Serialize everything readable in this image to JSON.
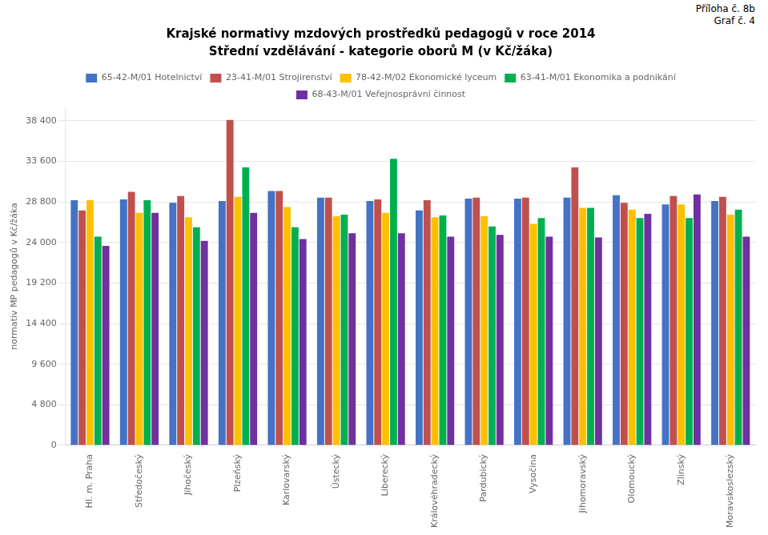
{
  "chart_data": {
    "type": "bar",
    "title": "Krajské normativy mzdových prostředků pedagogů v roce 2014",
    "subtitle": "Střední vzdělávání - kategorie oborů M (v Kč/žáka)",
    "annotations": [
      "Příloha č. 8b",
      "Graf č. 4"
    ],
    "ylabel": "normativ MP pedagogů v Kč/žáka",
    "categories": [
      "Hl. m. Praha",
      "Středočeský",
      "Jihočeský",
      "Plzeňský",
      "Karlovarský",
      "Ústecký",
      "Liberecký",
      "Královéhradecký",
      "Pardubický",
      "Vysočina",
      "Jihomoravský",
      "Olomoucký",
      "Zlínský",
      "Moravskoslezský"
    ],
    "series": [
      {
        "name": "65-42-M/01 Hotelnictví",
        "color": "#4472C4",
        "values": [
          29000,
          29100,
          28700,
          28900,
          30100,
          29300,
          28900,
          27800,
          29200,
          29200,
          29300,
          29600,
          28500,
          28900
        ]
      },
      {
        "name": "23-41-M/01 Strojirenství",
        "color": "#C0504D",
        "values": [
          27800,
          30000,
          29500,
          38500,
          30100,
          29300,
          29100,
          29000,
          29300,
          29300,
          32900,
          28700,
          29500,
          29400
        ]
      },
      {
        "name": "78-42-M/02 Ekonomické lyceum",
        "color": "#FFC000",
        "values": [
          29000,
          27500,
          27000,
          29400,
          28200,
          27100,
          27500,
          27000,
          27100,
          26200,
          28100,
          27900,
          28500,
          27300
        ]
      },
      {
        "name": "63-41-M/01 Ekonomika a podnikání",
        "color": "#00B050",
        "values": [
          24700,
          29000,
          25800,
          32900,
          25800,
          27300,
          33900,
          27200,
          25900,
          26900,
          28100,
          26900,
          26900,
          27900
        ]
      },
      {
        "name": "68-43-M/01 Veřejnosprávní činnost",
        "color": "#7030A0",
        "values": [
          23600,
          27500,
          24200,
          27500,
          24400,
          25100,
          25100,
          24700,
          24900,
          24700,
          24600,
          27400,
          29700,
          24700
        ]
      }
    ],
    "ylim": [
      0,
      40000
    ],
    "yticks": [
      0,
      {
        "value": 4800,
        "label": "4 800"
      },
      {
        "value": 9600,
        "label": "9 600"
      },
      {
        "value": 14400,
        "label": "14 400"
      },
      {
        "value": 19200,
        "label": "19 200"
      },
      {
        "value": 24000,
        "label": "24 000"
      },
      {
        "value": 28800,
        "label": "28 800"
      },
      {
        "value": 33600,
        "label": "33 600"
      },
      {
        "value": 38400,
        "label": "38 400"
      }
    ],
    "grid": true,
    "legend": "top"
  }
}
